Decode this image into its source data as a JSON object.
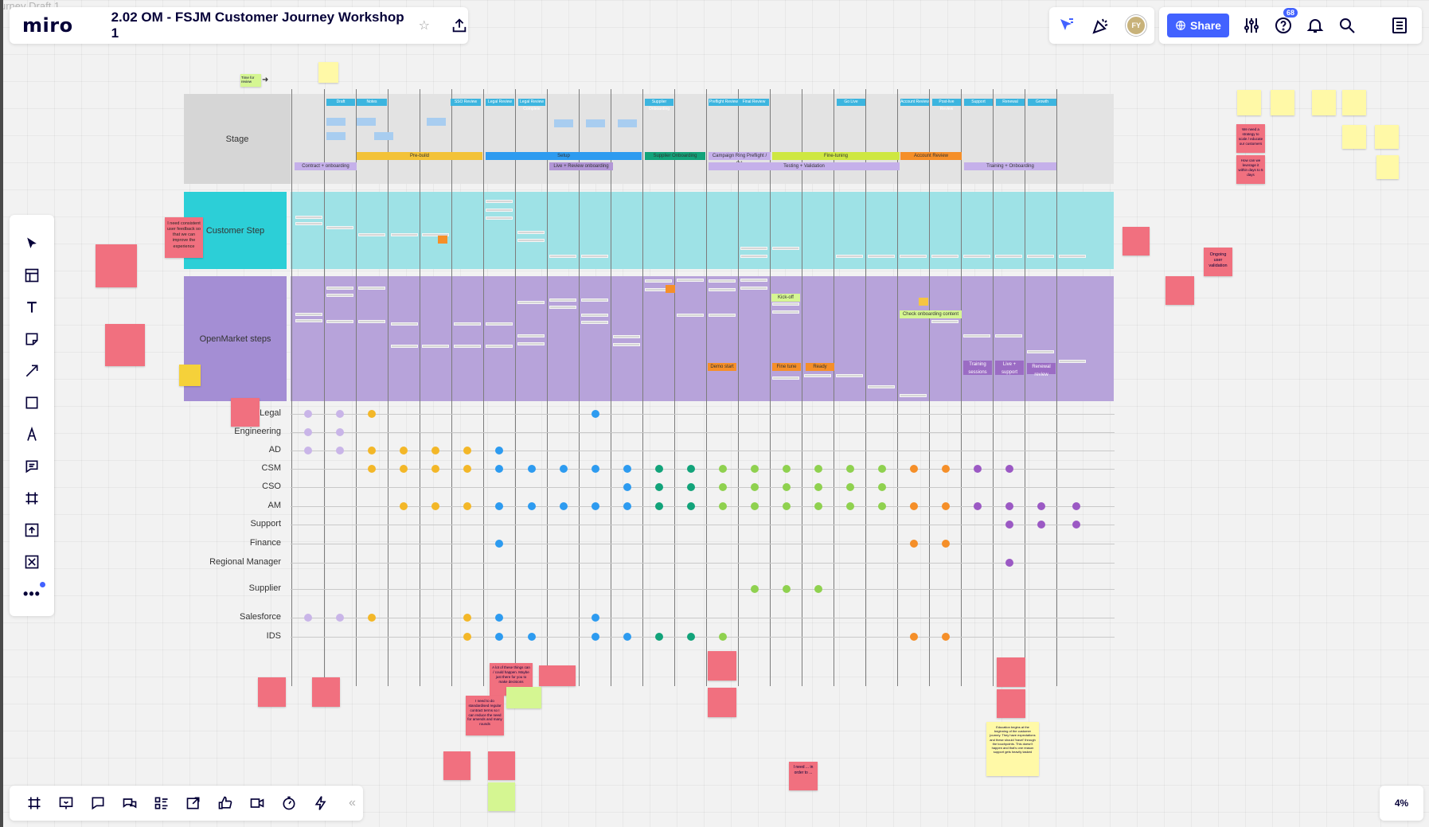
{
  "app": {
    "logo": "miro",
    "board_title": "2.02 OM - FSJM Customer Journey Workshop 1",
    "corner_title": "urney Draft 1"
  },
  "header": {
    "share_label": "Share",
    "notification_count": "68",
    "avatar_initials": "FY"
  },
  "zoom": {
    "level": "4%"
  },
  "bands": {
    "stage": "Stage",
    "customer_step": "Customer Step",
    "openmarket_steps": "OpenMarket steps"
  },
  "roles": [
    "Legal",
    "Engineering",
    "AD",
    "CSM",
    "CSO",
    "AM",
    "Support",
    "Finance",
    "Regional Manager",
    "Supplier",
    "Salesforce",
    "IDS"
  ],
  "colors": {
    "accent": "#4262ff",
    "stage_bg": "#e3e3e3",
    "customer_band": "#9ee2e6",
    "customer_label_bg": "#2ccfd7",
    "openmarket_band": "#b7a3da",
    "openmarket_label_bg": "#a48ed4",
    "sticky_pink": "#f1707f",
    "sticky_yellow": "#fff9a7",
    "sticky_green": "#d5f692",
    "dot_lilac": "#c9b5e8",
    "dot_yellow": "#f3b728",
    "dot_blue": "#2d9bf0",
    "dot_teal": "#12a37a",
    "dot_green": "#8fd14f",
    "dot_orange": "#f58f29",
    "dot_purple": "#9b59c4"
  },
  "toolbar": {
    "tools": [
      "select-icon",
      "template-icon",
      "text-icon",
      "sticky-note-icon",
      "connector-icon",
      "shape-icon",
      "pen-icon",
      "comment-icon",
      "frame-icon",
      "upload-icon",
      "crop-icon",
      "more-icon"
    ]
  },
  "bottom_bar": {
    "tools": [
      "frames-icon",
      "presentation-icon",
      "comments-icon",
      "chat-icon",
      "cards-icon",
      "share-screen-icon",
      "reactions-icon",
      "video-icon",
      "timer-icon",
      "flash-icon",
      "collapse-icon"
    ]
  },
  "stage_bars": [
    {
      "label": "Contract + onboarding",
      "color": "#c5b0ea"
    },
    {
      "label": "Pre-build",
      "color": "#f3c237"
    },
    {
      "label": "Setup",
      "color": "#2d9bf0"
    },
    {
      "label": "Supplier Onboarding",
      "color": "#12a37a"
    },
    {
      "label": "Campaign Ring Preflight / QA",
      "color": "#c5b0ea"
    },
    {
      "label": "Fine-tuning",
      "color": "#cee741"
    },
    {
      "label": "Account Review",
      "color": "#f58f29"
    },
    {
      "label": "Training + Onboarding",
      "color": "#c5b0ea"
    },
    {
      "label": "Testing + Validation",
      "color": "#c5b0ea"
    },
    {
      "label": "Live + Review onboarding",
      "color": "#b296d6"
    }
  ],
  "stage_headers": [
    "Draft",
    "Notes",
    "SSO Review",
    "Legal Review",
    "Legal Review Complete",
    "Supplier Onboarding",
    "Preflight Review",
    "Final Review",
    "Go Live",
    "Account Review",
    "Post-live Review",
    "Support",
    "Renewal",
    "Growth"
  ],
  "board_labels": {
    "tag_orange_1": "Demo start",
    "tag_orange_2": "Fine tune",
    "tag_orange_3": "Ready",
    "tag_green_1": "Kick-off",
    "tag_green_2": "Check onboarding content",
    "tag_purple_1": "Training sessions",
    "tag_purple_2": "Live + support",
    "tag_purple_3": "Renewal review",
    "note_float_1": "Time for review",
    "note_float_2": "Ongoing user validation",
    "note_i_need": "I need consistent user feedback so that we can improve the experience",
    "note_bottom_quote": "A lot of these things can / could happen. Maybe just there for you to make decisions",
    "note_bottom_2": "I need to do standardised regular contract terms so I can reduce the need for amends and many rounds",
    "note_bottom_3": "I need ... in order to ...",
    "note_bottom_4": "Education begins at the beginning of the customer journey. They have expectations and these should 'travel' through the touchpoints. This doesn't happen and that's one reason support gets heavily tasked",
    "note_top_right_1": "We need a strategy to scale / educate our customers",
    "note_top_right_2": "How can we leverage it within days to 5 days"
  }
}
